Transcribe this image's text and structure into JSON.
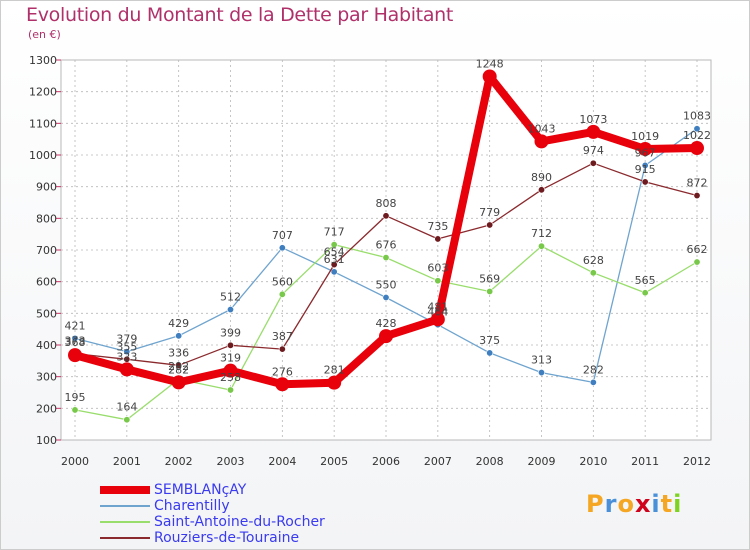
{
  "chart_data": {
    "type": "line",
    "title": "Evolution du Montant de la Dette par Habitant",
    "subtitle": "(en €)",
    "categories": [
      "2000",
      "2001",
      "2002",
      "2003",
      "2004",
      "2005",
      "2006",
      "2007",
      "2008",
      "2009",
      "2010",
      "2011",
      "2012"
    ],
    "ylim": [
      100,
      1300
    ],
    "yticks": [
      100,
      200,
      300,
      400,
      500,
      600,
      700,
      800,
      900,
      1000,
      1100,
      1200,
      1300
    ],
    "grid": true,
    "legend_placement": "bottom-left",
    "series": [
      {
        "name": "SEMBLANçAY",
        "color": "#e8000b",
        "line_width": 8,
        "marker_radius": 7,
        "values": [
          368,
          323,
          282,
          319,
          276,
          281,
          428,
          481,
          1248,
          1043,
          1073,
          1019,
          1022
        ]
      },
      {
        "name": "Charentilly",
        "color": "#6fa4cf",
        "line_width": 1.3,
        "marker_radius": 3.2,
        "values": [
          421,
          379,
          429,
          512,
          707,
          631,
          550,
          464,
          375,
          313,
          282,
          967,
          1083
        ]
      },
      {
        "name": "Saint-Antoine-du-Rocher",
        "color": "#99dd6c",
        "line_width": 1.3,
        "marker_radius": 3.2,
        "values": [
          195,
          164,
          292,
          258,
          560,
          717,
          676,
          603,
          569,
          712,
          628,
          565,
          662
        ]
      },
      {
        "name": "Rouziers-de-Touraine",
        "color": "#8b2a2e",
        "line_width": 1.3,
        "marker_radius": 3.2,
        "values": [
          373,
          355,
          336,
          399,
          387,
          654,
          808,
          735,
          779,
          890,
          974,
          915,
          872
        ]
      }
    ]
  },
  "logo": {
    "letters": [
      "P",
      "r",
      "o",
      "x",
      "i",
      "t",
      "i"
    ],
    "colors": [
      "#f5a623",
      "#4a90d9",
      "#f5a623",
      "#d0021b",
      "#4a90d9",
      "#f5a623",
      "#7ed321"
    ]
  }
}
